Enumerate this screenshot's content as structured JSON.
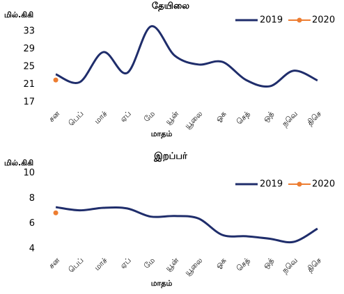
{
  "chart_data": [
    {
      "type": "line",
      "title": "தேயிலை",
      "y_label": "மில்.கிகி",
      "x_label": "மாதம்",
      "categories": [
        "சன",
        "பெப்",
        "மாச்",
        "ஏப்",
        "மே",
        "யூன்",
        "யூலை",
        "ஓக",
        "செத்",
        "ஒத்",
        "நவெ",
        "திசெ"
      ],
      "series": [
        {
          "name": "2019",
          "color": "#1f2d6b",
          "values": [
            23.3,
            21.5,
            28.3,
            23.6,
            34.1,
            27.5,
            25.5,
            26.1,
            22.0,
            20.6,
            24.1,
            21.9
          ]
        },
        {
          "name": "2020",
          "color": "#ed7d31",
          "values": [
            22.0,
            null,
            null,
            null,
            null,
            null,
            null,
            null,
            null,
            null,
            null,
            null
          ]
        }
      ],
      "ylim": [
        17,
        37
      ],
      "yticks": [
        17,
        21,
        25,
        29,
        33
      ],
      "legend": "top-right"
    },
    {
      "type": "line",
      "title": "இறப்பர்",
      "y_label": "மில்.கிகி",
      "x_label": "மாதம்",
      "categories": [
        "சன",
        "பெப்",
        "மாச்",
        "ஏப்",
        "மே",
        "யூன்",
        "யூலை",
        "ஓக",
        "செத்",
        "ஒத்",
        "நவெ",
        "திசெ"
      ],
      "series": [
        {
          "name": "2019",
          "color": "#1f2d6b",
          "values": [
            7.3,
            7.05,
            7.25,
            7.2,
            6.55,
            6.6,
            6.4,
            5.1,
            5.0,
            4.8,
            4.55,
            5.6
          ]
        },
        {
          "name": "2020",
          "color": "#ed7d31",
          "values": [
            6.85,
            null,
            null,
            null,
            null,
            null,
            null,
            null,
            null,
            null,
            null,
            null
          ]
        }
      ],
      "ylim": [
        4,
        10
      ],
      "yticks": [
        4,
        6,
        8,
        10
      ],
      "legend": "top-right"
    }
  ]
}
